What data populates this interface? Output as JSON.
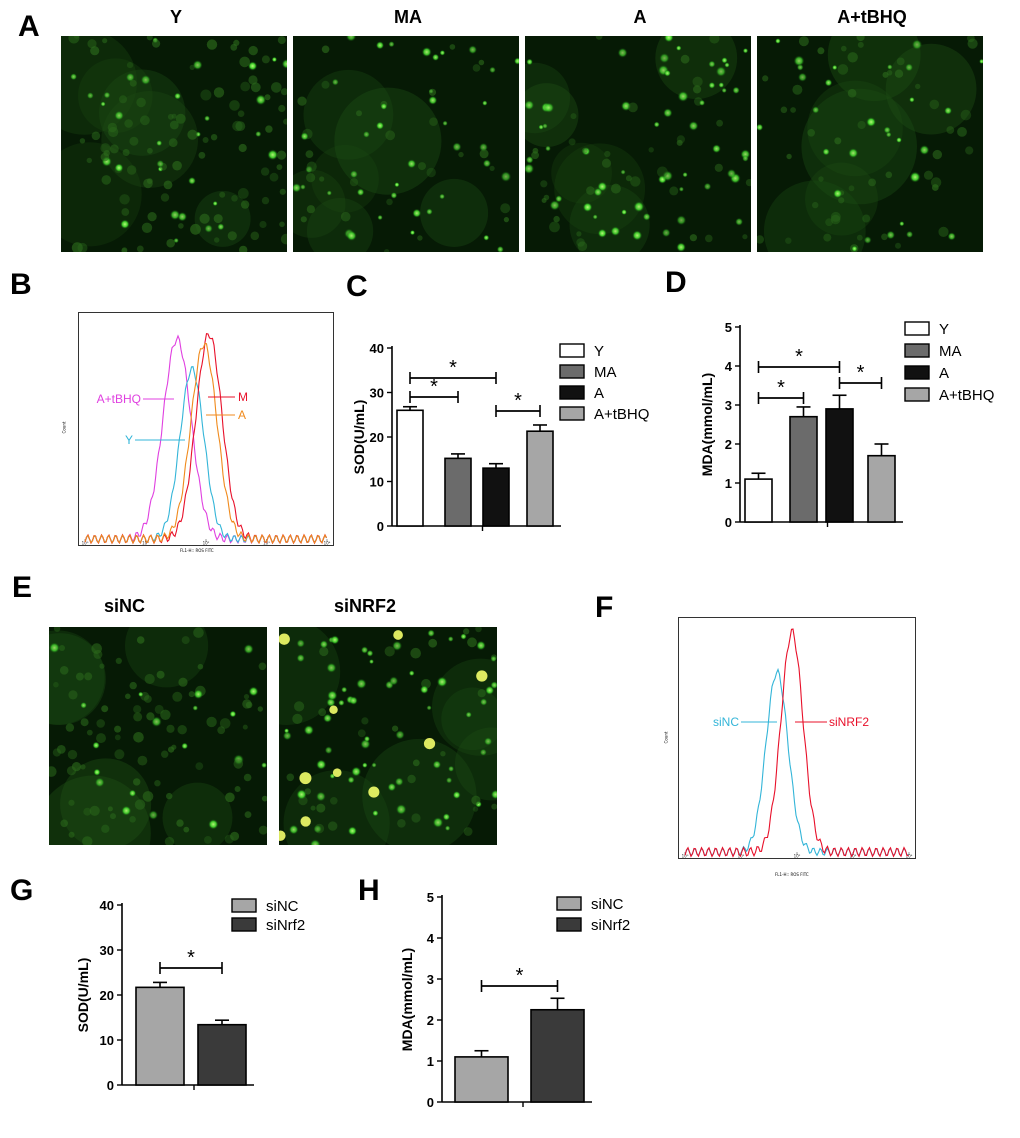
{
  "panels": {
    "A": {
      "label": "A",
      "images": [
        {
          "title": "Y",
          "brightness": 0.35,
          "density": 130,
          "seed": 11
        },
        {
          "title": "MA",
          "brightness": 0.9,
          "density": 70,
          "seed": 23
        },
        {
          "title": "A",
          "brightness": 0.85,
          "density": 95,
          "seed": 37
        },
        {
          "title": "A+tBHQ",
          "brightness": 0.55,
          "density": 80,
          "seed": 51
        }
      ]
    },
    "B": {
      "label": "B",
      "y_axis": "Count",
      "x_axis": "FL1-H:: ROS FITC",
      "ticks": [
        "10⁰",
        "10¹",
        "10²",
        "10³",
        "10⁴"
      ],
      "curves": [
        {
          "name": "A+tBHQ",
          "color": "#e040e0"
        },
        {
          "name": "Y",
          "color": "#33b5d8"
        },
        {
          "name": "M",
          "color": "#e8102a"
        },
        {
          "name": "A",
          "color": "#f08a1c"
        }
      ]
    },
    "C": {
      "label": "C"
    },
    "D": {
      "label": "D"
    },
    "E": {
      "label": "E",
      "images": [
        {
          "title": "siNC",
          "brightness": 0.3,
          "density": 110,
          "seed": 61
        },
        {
          "title": "siNRF2",
          "brightness": 1.0,
          "density": 100,
          "seed": 73
        }
      ]
    },
    "F": {
      "label": "F",
      "y_axis": "Count",
      "x_axis": "FL1-H:: ROS FITC",
      "ticks": [
        "10⁰",
        "10¹",
        "10²",
        "10³",
        "10⁴"
      ],
      "curves": [
        {
          "name": "siNC",
          "color": "#33b5d8"
        },
        {
          "name": "siNRF2",
          "color": "#e8102a"
        }
      ]
    },
    "G": {
      "label": "G"
    },
    "H": {
      "label": "H"
    }
  },
  "chart_data": [
    {
      "id": "C",
      "type": "bar",
      "ylabel": "SOD(U/mL)",
      "ylim": [
        0,
        40
      ],
      "yticks": [
        0,
        10,
        20,
        30,
        40
      ],
      "categories": [
        "Y",
        "MA",
        "A",
        "A+tBHQ"
      ],
      "values": [
        26,
        15.2,
        13,
        21.3
      ],
      "errors": [
        0.8,
        1.0,
        1.0,
        1.4
      ],
      "colors": [
        "#ffffff",
        "#6b6b6b",
        "#111111",
        "#a6a6a6"
      ],
      "significance": [
        {
          "from": 0,
          "to": 1,
          "label": "*"
        },
        {
          "from": 0,
          "to": 2,
          "label": "*"
        },
        {
          "from": 2,
          "to": 3,
          "label": "*"
        }
      ],
      "legend": [
        "Y",
        "MA",
        "A",
        "A+tBHQ"
      ]
    },
    {
      "id": "D",
      "type": "bar",
      "ylabel": "MDA(mmol/mL)",
      "ylim": [
        0,
        5
      ],
      "yticks": [
        0,
        1,
        2,
        3,
        4,
        5
      ],
      "categories": [
        "Y",
        "MA",
        "A",
        "A+tBHQ"
      ],
      "values": [
        1.1,
        2.7,
        2.9,
        1.7
      ],
      "errors": [
        0.15,
        0.25,
        0.35,
        0.3
      ],
      "colors": [
        "#ffffff",
        "#6b6b6b",
        "#111111",
        "#a6a6a6"
      ],
      "significance": [
        {
          "from": 0,
          "to": 1,
          "label": "*"
        },
        {
          "from": 0,
          "to": 2,
          "label": "*"
        },
        {
          "from": 2,
          "to": 3,
          "label": "*"
        }
      ],
      "legend": [
        "Y",
        "MA",
        "A",
        "A+tBHQ"
      ]
    },
    {
      "id": "G",
      "type": "bar",
      "ylabel": "SOD(U/mL)",
      "ylim": [
        0,
        40
      ],
      "yticks": [
        0,
        10,
        20,
        30,
        40
      ],
      "categories": [
        "siNC",
        "siNrf2"
      ],
      "values": [
        21.7,
        13.4
      ],
      "errors": [
        1.1,
        1.0
      ],
      "colors": [
        "#a6a6a6",
        "#3a3a3a"
      ],
      "significance": [
        {
          "from": 0,
          "to": 1,
          "label": "*"
        }
      ],
      "legend": [
        "siNC",
        "siNrf2"
      ]
    },
    {
      "id": "H",
      "type": "bar",
      "ylabel": "MDA(mmol/mL)",
      "ylim": [
        0,
        5
      ],
      "yticks": [
        0,
        1,
        2,
        3,
        4,
        5
      ],
      "categories": [
        "siNC",
        "siNrf2"
      ],
      "values": [
        1.1,
        2.25
      ],
      "errors": [
        0.15,
        0.28
      ],
      "colors": [
        "#a6a6a6",
        "#3a3a3a"
      ],
      "significance": [
        {
          "from": 0,
          "to": 1,
          "label": "*"
        }
      ],
      "legend": [
        "siNC",
        "siNrf2"
      ]
    }
  ]
}
